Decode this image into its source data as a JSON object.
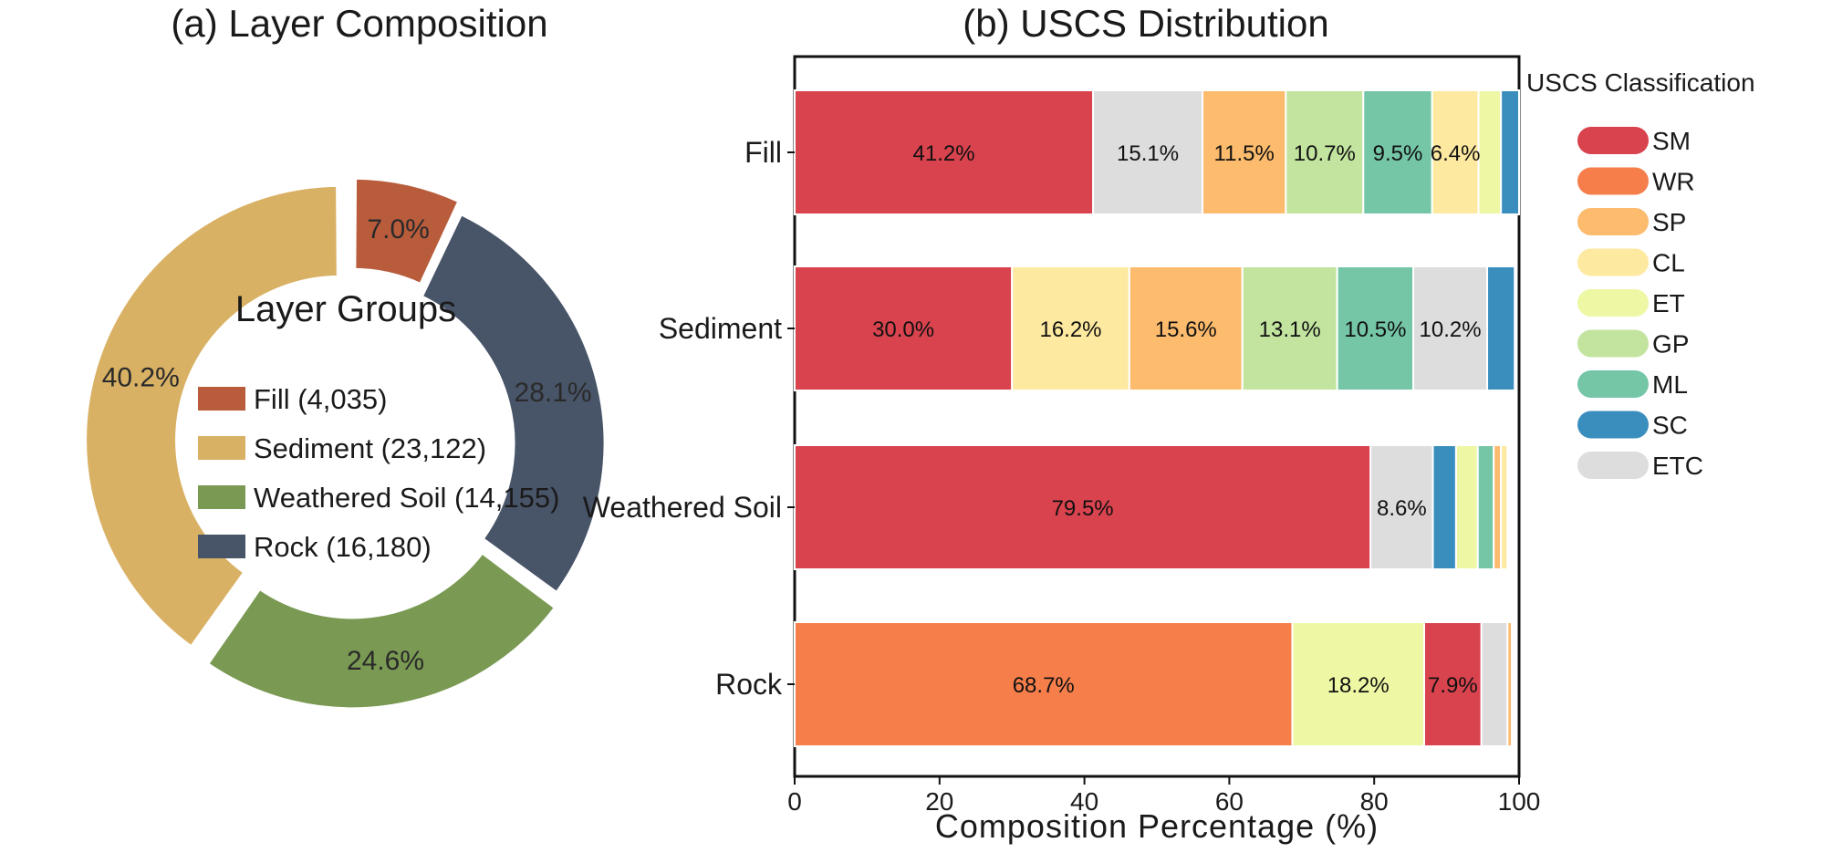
{
  "chart_data": [
    {
      "type": "pie",
      "style": "donut",
      "title": "(a) Layer Composition",
      "legend_title": "Layer Groups",
      "legend_placement": "center",
      "slices": [
        {
          "name": "Fill",
          "count": 4035,
          "count_label": "4,035",
          "percent": 7.0,
          "percent_label": "7.0%",
          "color": "#b85c3c",
          "exploded": true
        },
        {
          "name": "Rock",
          "count": 16180,
          "count_label": "16,180",
          "percent": 28.1,
          "percent_label": "28.1%",
          "color": "#485468",
          "exploded": false
        },
        {
          "name": "Weathered Soil",
          "count": 14155,
          "count_label": "14,155",
          "percent": 24.6,
          "percent_label": "24.6%",
          "color": "#7a9a53",
          "exploded": true
        },
        {
          "name": "Sediment",
          "count": 23122,
          "count_label": "23,122",
          "percent": 40.2,
          "percent_label": "40.2%",
          "color": "#d9b164",
          "exploded": true
        }
      ],
      "legend_order": [
        "Fill",
        "Sediment",
        "Weathered Soil",
        "Rock"
      ]
    },
    {
      "type": "bar",
      "orientation": "horizontal",
      "stacked": true,
      "title": "(b) USCS Distribution",
      "xlabel": "Composition Percentage (%)",
      "ylabel": "",
      "xlim": [
        0,
        100
      ],
      "xticks": [
        0,
        20,
        40,
        60,
        80,
        100
      ],
      "legend_title": "USCS Classification",
      "legend_placement": "right",
      "classes": [
        {
          "name": "SM",
          "color": "#d8434e"
        },
        {
          "name": "WR",
          "color": "#f57e4b"
        },
        {
          "name": "SP",
          "color": "#fcbb6d"
        },
        {
          "name": "CL",
          "color": "#fde9a0"
        },
        {
          "name": "ET",
          "color": "#eef7a4"
        },
        {
          "name": "GP",
          "color": "#c2e49f"
        },
        {
          "name": "ML",
          "color": "#74c6a6"
        },
        {
          "name": "SC",
          "color": "#3a8ebe"
        },
        {
          "name": "ETC",
          "color": "#dddddd"
        }
      ],
      "categories": [
        "Fill",
        "Sediment",
        "Weathered Soil",
        "Rock"
      ],
      "bars": [
        {
          "category": "Fill",
          "segments": [
            {
              "class": "SM",
              "value": 41.2,
              "label": "41.2%"
            },
            {
              "class": "ETC",
              "value": 15.1,
              "label": "15.1%"
            },
            {
              "class": "SP",
              "value": 11.5,
              "label": "11.5%"
            },
            {
              "class": "GP",
              "value": 10.7,
              "label": "10.7%"
            },
            {
              "class": "ML",
              "value": 9.5,
              "label": "9.5%"
            },
            {
              "class": "CL",
              "value": 6.4,
              "label": "6.4%"
            },
            {
              "class": "ET",
              "value": 3.1,
              "label": ""
            },
            {
              "class": "SC",
              "value": 2.5,
              "label": ""
            }
          ]
        },
        {
          "category": "Sediment",
          "segments": [
            {
              "class": "SM",
              "value": 30.0,
              "label": "30.0%"
            },
            {
              "class": "CL",
              "value": 16.2,
              "label": "16.2%"
            },
            {
              "class": "SP",
              "value": 15.6,
              "label": "15.6%"
            },
            {
              "class": "GP",
              "value": 13.1,
              "label": "13.1%"
            },
            {
              "class": "ML",
              "value": 10.5,
              "label": "10.5%"
            },
            {
              "class": "ETC",
              "value": 10.2,
              "label": "10.2%"
            },
            {
              "class": "SC",
              "value": 3.8,
              "label": ""
            }
          ]
        },
        {
          "category": "Weathered Soil",
          "segments": [
            {
              "class": "SM",
              "value": 79.5,
              "label": "79.5%"
            },
            {
              "class": "ETC",
              "value": 8.6,
              "label": "8.6%"
            },
            {
              "class": "SC",
              "value": 3.2,
              "label": ""
            },
            {
              "class": "ET",
              "value": 3.0,
              "label": ""
            },
            {
              "class": "ML",
              "value": 2.2,
              "label": ""
            },
            {
              "class": "SP",
              "value": 1.0,
              "label": ""
            },
            {
              "class": "CL",
              "value": 0.9,
              "label": ""
            }
          ]
        },
        {
          "category": "Rock",
          "segments": [
            {
              "class": "WR",
              "value": 68.7,
              "label": "68.7%"
            },
            {
              "class": "ET",
              "value": 18.2,
              "label": "18.2%"
            },
            {
              "class": "SM",
              "value": 7.9,
              "label": "7.9%"
            },
            {
              "class": "ETC",
              "value": 3.6,
              "label": ""
            },
            {
              "class": "SP",
              "value": 0.6,
              "label": ""
            }
          ]
        }
      ]
    }
  ]
}
